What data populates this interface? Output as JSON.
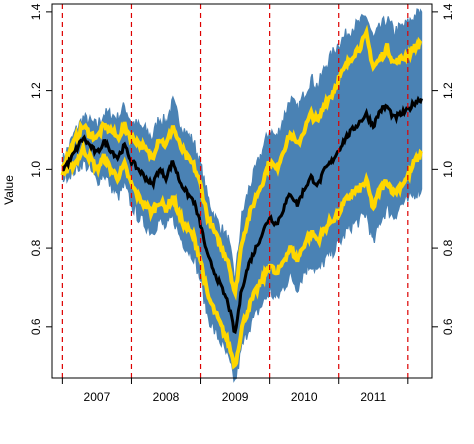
{
  "chart_data": {
    "type": "line",
    "title": "",
    "xlabel": "",
    "ylabel": "Value",
    "xlim": [
      2006.35,
      2011.85
    ],
    "ylim": [
      0.47,
      1.42
    ],
    "x_tick_labels": [
      {
        "x": 2007.0,
        "label": "2007"
      },
      {
        "x": 2008.0,
        "label": "2008"
      },
      {
        "x": 2009.0,
        "label": "2009"
      },
      {
        "x": 2010.0,
        "label": "2010"
      },
      {
        "x": 2011.0,
        "label": "2011"
      }
    ],
    "y_ticks": [
      0.6,
      0.8,
      1.0,
      1.2,
      1.4
    ],
    "y_tick_labels": [
      "0.6",
      "0.8",
      "1.0",
      "1.2",
      "1.4"
    ],
    "vlines": [
      2006.5,
      2007.5,
      2008.5,
      2009.5,
      2010.5,
      2011.5
    ],
    "grid": false,
    "legend": "none",
    "colors": {
      "center": "#000000",
      "inner_band": "#FFD700",
      "outer_band": "#4A82B4",
      "vline": "#DD0000"
    },
    "series": [
      {
        "role": "center",
        "x": [
          2006.5,
          2006.6,
          2006.7,
          2006.8,
          2006.9,
          2007.0,
          2007.1,
          2007.2,
          2007.3,
          2007.4,
          2007.5,
          2007.6,
          2007.7,
          2007.8,
          2007.9,
          2008.0,
          2008.1,
          2008.2,
          2008.3,
          2008.4,
          2008.5,
          2008.6,
          2008.7,
          2008.8,
          2008.9,
          2009.0,
          2009.1,
          2009.2,
          2009.3,
          2009.4,
          2009.5,
          2009.6,
          2009.7,
          2009.8,
          2009.9,
          2010.0,
          2010.1,
          2010.2,
          2010.3,
          2010.4,
          2010.5,
          2010.6,
          2010.7,
          2010.8,
          2010.9,
          2011.0,
          2011.1,
          2011.2,
          2011.3,
          2011.4,
          2011.5,
          2011.6,
          2011.7
        ],
        "y": [
          1.0,
          1.02,
          1.05,
          1.08,
          1.06,
          1.04,
          1.07,
          1.05,
          1.03,
          1.06,
          1.02,
          1.0,
          0.98,
          0.96,
          1.0,
          0.98,
          1.02,
          0.97,
          0.94,
          0.92,
          0.86,
          0.78,
          0.74,
          0.7,
          0.66,
          0.58,
          0.7,
          0.76,
          0.8,
          0.84,
          0.88,
          0.86,
          0.9,
          0.94,
          0.91,
          0.95,
          0.98,
          0.96,
          1.0,
          1.02,
          1.05,
          1.08,
          1.1,
          1.12,
          1.14,
          1.11,
          1.15,
          1.16,
          1.13,
          1.14,
          1.15,
          1.17,
          1.18
        ]
      },
      {
        "role": "inner_upper",
        "x": [
          2006.5,
          2006.6,
          2006.7,
          2006.8,
          2006.9,
          2007.0,
          2007.1,
          2007.2,
          2007.3,
          2007.4,
          2007.5,
          2007.6,
          2007.7,
          2007.8,
          2007.9,
          2008.0,
          2008.1,
          2008.2,
          2008.3,
          2008.4,
          2008.5,
          2008.6,
          2008.7,
          2008.8,
          2008.9,
          2009.0,
          2009.1,
          2009.2,
          2009.3,
          2009.4,
          2009.5,
          2009.6,
          2009.7,
          2009.8,
          2009.9,
          2010.0,
          2010.1,
          2010.2,
          2010.3,
          2010.4,
          2010.5,
          2010.6,
          2010.7,
          2010.8,
          2010.9,
          2011.0,
          2011.1,
          2011.2,
          2011.3,
          2011.4,
          2011.5,
          2011.6,
          2011.7
        ],
        "y": [
          1.01,
          1.04,
          1.08,
          1.11,
          1.09,
          1.08,
          1.11,
          1.1,
          1.08,
          1.11,
          1.08,
          1.07,
          1.05,
          1.03,
          1.08,
          1.06,
          1.11,
          1.06,
          1.03,
          1.01,
          0.96,
          0.88,
          0.84,
          0.8,
          0.77,
          0.68,
          0.82,
          0.88,
          0.93,
          0.97,
          1.02,
          1.0,
          1.05,
          1.09,
          1.06,
          1.1,
          1.14,
          1.12,
          1.17,
          1.19,
          1.23,
          1.26,
          1.29,
          1.31,
          1.34,
          1.26,
          1.28,
          1.31,
          1.27,
          1.28,
          1.29,
          1.31,
          1.32
        ]
      },
      {
        "role": "inner_lower",
        "x": [
          2006.5,
          2006.6,
          2006.7,
          2006.8,
          2006.9,
          2007.0,
          2007.1,
          2007.2,
          2007.3,
          2007.4,
          2007.5,
          2007.6,
          2007.7,
          2007.8,
          2007.9,
          2008.0,
          2008.1,
          2008.2,
          2008.3,
          2008.4,
          2008.5,
          2008.6,
          2008.7,
          2008.8,
          2008.9,
          2009.0,
          2009.1,
          2009.2,
          2009.3,
          2009.4,
          2009.5,
          2009.6,
          2009.7,
          2009.8,
          2009.9,
          2010.0,
          2010.1,
          2010.2,
          2010.3,
          2010.4,
          2010.5,
          2010.6,
          2010.7,
          2010.8,
          2010.9,
          2011.0,
          2011.1,
          2011.2,
          2011.3,
          2011.4,
          2011.5,
          2011.6,
          2011.7
        ],
        "y": [
          0.99,
          1.0,
          1.02,
          1.05,
          1.03,
          1.0,
          1.03,
          1.0,
          0.98,
          1.01,
          0.96,
          0.93,
          0.91,
          0.89,
          0.92,
          0.9,
          0.93,
          0.88,
          0.85,
          0.83,
          0.77,
          0.68,
          0.64,
          0.6,
          0.56,
          0.5,
          0.6,
          0.65,
          0.69,
          0.72,
          0.76,
          0.73,
          0.77,
          0.8,
          0.77,
          0.81,
          0.84,
          0.82,
          0.85,
          0.87,
          0.89,
          0.92,
          0.94,
          0.95,
          0.97,
          0.9,
          0.95,
          0.97,
          0.94,
          0.96,
          0.98,
          1.02,
          1.04
        ]
      },
      {
        "role": "outer_upper",
        "x": [
          2006.5,
          2006.6,
          2006.7,
          2006.8,
          2006.9,
          2007.0,
          2007.1,
          2007.2,
          2007.3,
          2007.4,
          2007.5,
          2007.6,
          2007.7,
          2007.8,
          2007.9,
          2008.0,
          2008.1,
          2008.2,
          2008.3,
          2008.4,
          2008.5,
          2008.6,
          2008.7,
          2008.8,
          2008.9,
          2009.0,
          2009.1,
          2009.2,
          2009.3,
          2009.4,
          2009.5,
          2009.6,
          2009.7,
          2009.8,
          2009.9,
          2010.0,
          2010.1,
          2010.2,
          2010.3,
          2010.4,
          2010.5,
          2010.6,
          2010.7,
          2010.8,
          2010.9,
          2011.0,
          2011.1,
          2011.2,
          2011.3,
          2011.4,
          2011.5,
          2011.6,
          2011.7
        ],
        "y": [
          1.02,
          1.06,
          1.1,
          1.13,
          1.12,
          1.11,
          1.14,
          1.14,
          1.13,
          1.16,
          1.12,
          1.11,
          1.1,
          1.08,
          1.13,
          1.12,
          1.17,
          1.12,
          1.09,
          1.07,
          1.01,
          0.93,
          0.88,
          0.85,
          0.82,
          0.72,
          0.88,
          0.95,
          1.0,
          1.05,
          1.1,
          1.08,
          1.13,
          1.18,
          1.15,
          1.19,
          1.23,
          1.21,
          1.26,
          1.29,
          1.32,
          1.34,
          1.36,
          1.37,
          1.39,
          1.33,
          1.36,
          1.38,
          1.35,
          1.36,
          1.37,
          1.39,
          1.4
        ]
      },
      {
        "role": "outer_lower",
        "x": [
          2006.5,
          2006.6,
          2006.7,
          2006.8,
          2006.9,
          2007.0,
          2007.1,
          2007.2,
          2007.3,
          2007.4,
          2007.5,
          2007.6,
          2007.7,
          2007.8,
          2007.9,
          2008.0,
          2008.1,
          2008.2,
          2008.3,
          2008.4,
          2008.5,
          2008.6,
          2008.7,
          2008.8,
          2008.9,
          2009.0,
          2009.1,
          2009.2,
          2009.3,
          2009.4,
          2009.5,
          2009.6,
          2009.7,
          2009.8,
          2009.9,
          2010.0,
          2010.1,
          2010.2,
          2010.3,
          2010.4,
          2010.5,
          2010.6,
          2010.7,
          2010.8,
          2010.9,
          2011.0,
          2011.1,
          2011.2,
          2011.3,
          2011.4,
          2011.5,
          2011.6,
          2011.7
        ],
        "y": [
          0.98,
          0.99,
          1.0,
          1.02,
          1.0,
          0.97,
          0.99,
          0.96,
          0.93,
          0.96,
          0.91,
          0.88,
          0.86,
          0.84,
          0.87,
          0.85,
          0.88,
          0.83,
          0.8,
          0.78,
          0.72,
          0.63,
          0.59,
          0.56,
          0.52,
          0.46,
          0.55,
          0.6,
          0.63,
          0.66,
          0.69,
          0.67,
          0.7,
          0.73,
          0.7,
          0.74,
          0.76,
          0.74,
          0.77,
          0.79,
          0.81,
          0.84,
          0.86,
          0.87,
          0.89,
          0.81,
          0.87,
          0.9,
          0.88,
          0.91,
          0.92,
          0.94,
          0.95
        ]
      }
    ]
  }
}
